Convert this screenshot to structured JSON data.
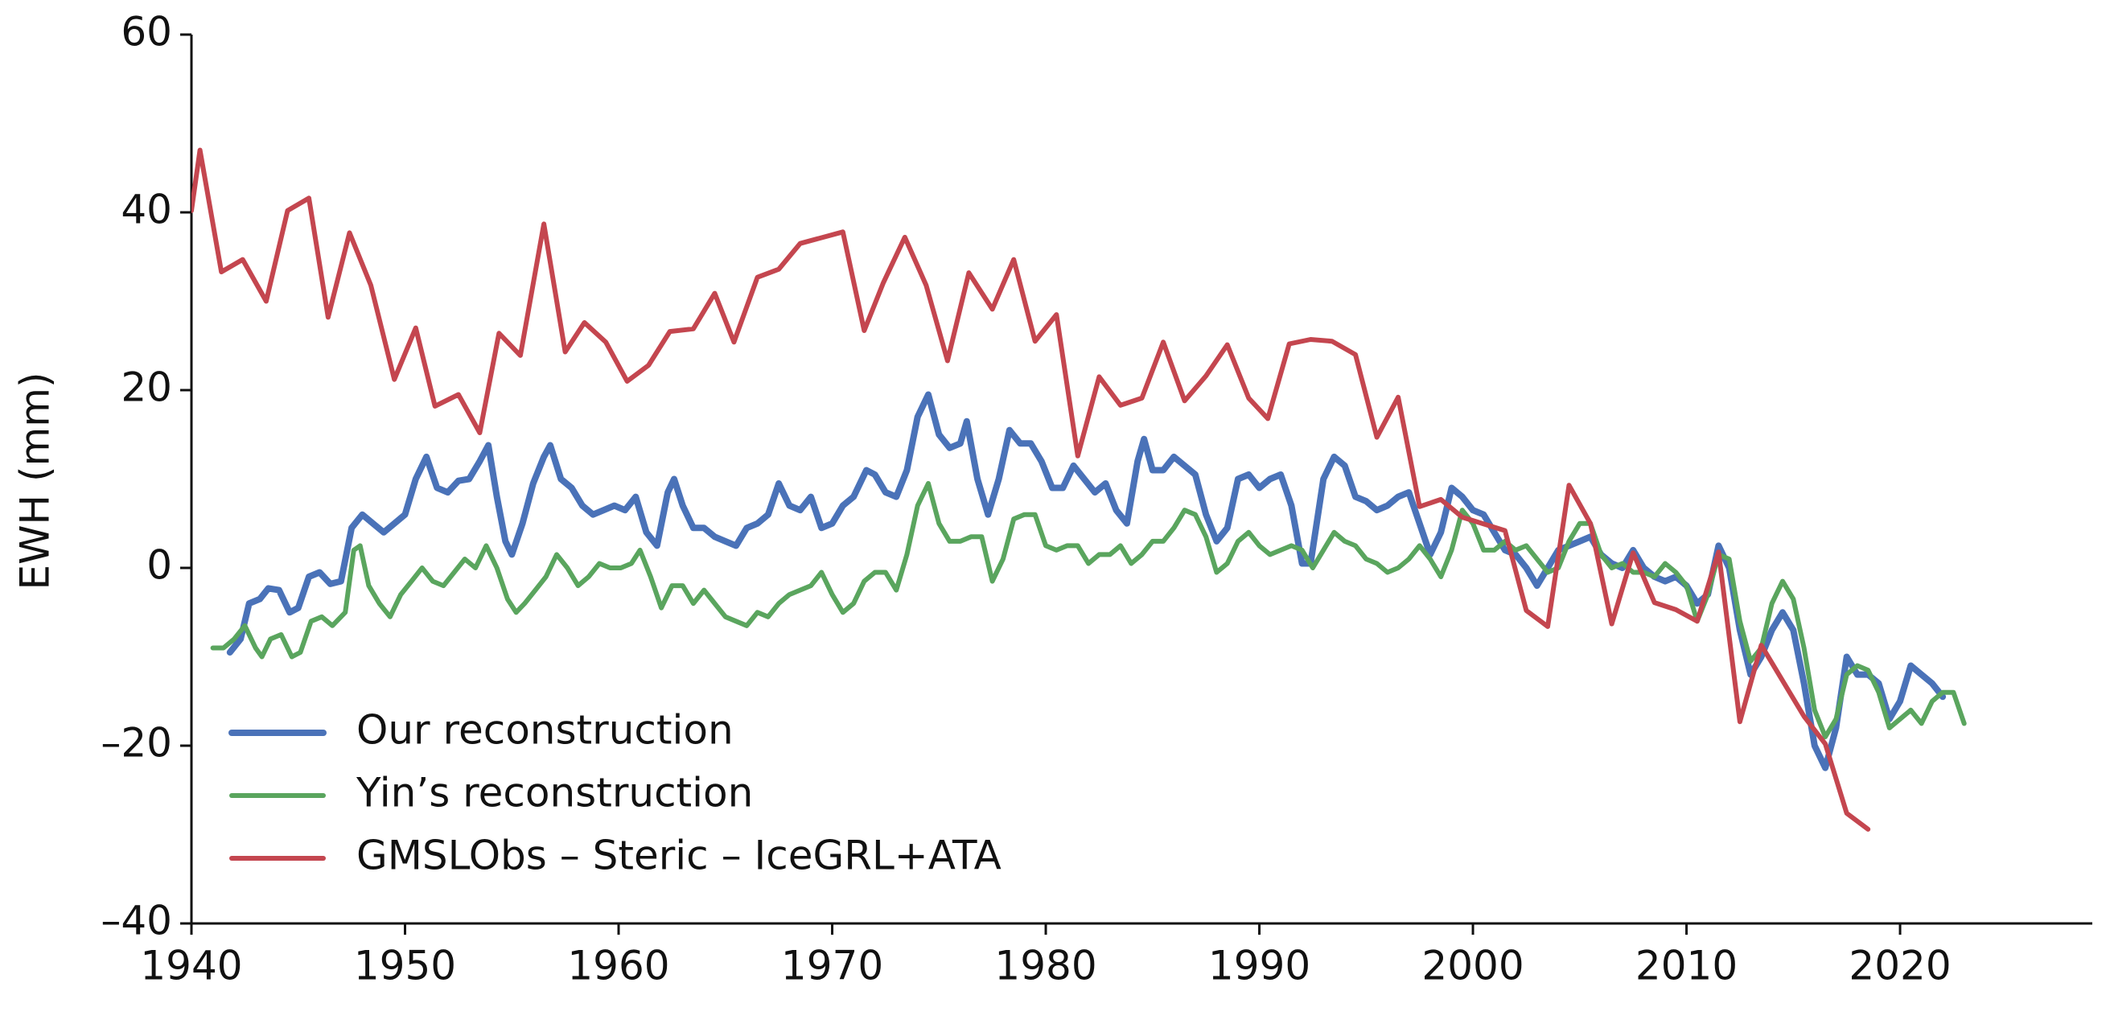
{
  "chart_data": {
    "type": "line",
    "y_label": "EWH (mm)",
    "xlim": [
      1940,
      2029
    ],
    "ylim": [
      -40,
      60
    ],
    "xticks": [
      1940,
      1950,
      1960,
      1970,
      1980,
      1990,
      2000,
      2010,
      2020
    ],
    "yticks": [
      {
        "value": -40,
        "label": "–40"
      },
      {
        "value": -20,
        "label": "–20"
      },
      0,
      20,
      40,
      60
    ],
    "grid": false,
    "legend": "lower left",
    "series": [
      {
        "name": "Our reconstruction",
        "color": "#4a72b8",
        "width": 8,
        "x": [
          1941.8,
          1942.3,
          1942.7,
          1943.2,
          1943.6,
          1944.1,
          1944.6,
          1945.0,
          1945.5,
          1946.0,
          1946.5,
          1947.0,
          1947.5,
          1948.0,
          1948.5,
          1949.0,
          1949.5,
          1950.0,
          1950.5,
          1951.0,
          1951.5,
          1952.0,
          1952.5,
          1953.0,
          1953.5,
          1953.9,
          1954.3,
          1954.7,
          1955.0,
          1955.5,
          1956.0,
          1956.5,
          1956.8,
          1957.3,
          1957.8,
          1958.3,
          1958.8,
          1959.3,
          1959.8,
          1960.3,
          1960.8,
          1961.3,
          1961.8,
          1962.3,
          1962.6,
          1963.0,
          1963.5,
          1964.0,
          1964.5,
          1965.0,
          1965.5,
          1966.0,
          1966.5,
          1967.0,
          1967.5,
          1968.0,
          1968.5,
          1969.0,
          1969.5,
          1970.0,
          1970.5,
          1971.0,
          1971.6,
          1972.0,
          1972.5,
          1973.0,
          1973.5,
          1974.0,
          1974.5,
          1975.0,
          1975.5,
          1976.0,
          1976.3,
          1976.8,
          1977.3,
          1977.8,
          1978.3,
          1978.8,
          1979.3,
          1979.8,
          1980.3,
          1980.8,
          1981.3,
          1981.8,
          1982.3,
          1982.8,
          1983.3,
          1983.8,
          1984.3,
          1984.6,
          1985.0,
          1985.5,
          1986.0,
          1986.5,
          1987.0,
          1987.5,
          1988.0,
          1988.5,
          1989.0,
          1989.5,
          1990.0,
          1990.5,
          1991.0,
          1991.5,
          1992.0,
          1992.4,
          1993.0,
          1993.5,
          1994.0,
          1994.5,
          1995.0,
          1995.5,
          1996.0,
          1996.5,
          1997.0,
          1997.5,
          1998.0,
          1998.5,
          1999.0,
          1999.5,
          2000.0,
          2000.5,
          2001.0,
          2001.5,
          2002.0,
          2002.5,
          2003.0,
          2003.5,
          2004.0,
          2004.5,
          2005.0,
          2005.5,
          2006.0,
          2006.5,
          2007.0,
          2007.5,
          2008.0,
          2008.5,
          2009.0,
          2009.5,
          2010.0,
          2010.5,
          2011.0,
          2011.5,
          2012.0,
          2012.5,
          2013.0,
          2013.5,
          2014.0,
          2014.5,
          2015.0,
          2015.5,
          2016.0,
          2016.5,
          2017.0,
          2017.5,
          2018.0,
          2018.5,
          2019.0,
          2019.5,
          2020.0,
          2020.5,
          2021.0,
          2021.5,
          2022.0
        ],
        "values": [
          -9.5,
          -8,
          -4,
          -3.5,
          -2.3,
          -2.5,
          -5,
          -4.5,
          -1,
          -0.5,
          -1.8,
          -1.5,
          4.5,
          6,
          5,
          4,
          5,
          6,
          10,
          12.5,
          9,
          8.5,
          9.8,
          10,
          12,
          13.8,
          8,
          3,
          1.5,
          5,
          9.5,
          12.5,
          13.8,
          10,
          9,
          7,
          6,
          6.5,
          7,
          6.5,
          8,
          4,
          2.5,
          8.5,
          10,
          7,
          4.5,
          4.5,
          3.5,
          3,
          2.5,
          4.5,
          5,
          6,
          9.5,
          7,
          6.5,
          8,
          4.5,
          5,
          7,
          8,
          11,
          10.5,
          8.5,
          8,
          11,
          17,
          19.5,
          15,
          13.5,
          14,
          16.5,
          10,
          6,
          10,
          15.5,
          14,
          14,
          12,
          9,
          9,
          11.5,
          10,
          8.5,
          9.5,
          6.5,
          5,
          12,
          14.5,
          11,
          11,
          12.5,
          11.5,
          10.5,
          6,
          3,
          4.5,
          10,
          10.5,
          9,
          10,
          10.5,
          7,
          0.5,
          0.5,
          10,
          12.5,
          11.5,
          8,
          7.5,
          6.5,
          7,
          8,
          8.5,
          5,
          1.5,
          4,
          9,
          8,
          6.5,
          6,
          4,
          2,
          1.5,
          0,
          -2,
          0,
          2,
          2.5,
          3,
          3.5,
          1.5,
          0.5,
          0,
          2,
          0,
          -1,
          -1.5,
          -1,
          -2,
          -4,
          -3,
          2.5,
          0,
          -7,
          -12,
          -10,
          -7,
          -5,
          -7,
          -13,
          -20,
          -22.5,
          -18,
          -10,
          -12,
          -12,
          -13,
          -17,
          -15,
          -11,
          -12,
          -13,
          -14.5
        ]
      },
      {
        "name": "Yin’s reconstruction",
        "color": "#5aa55e",
        "width": 6,
        "x": [
          1941.0,
          1941.5,
          1942.0,
          1942.5,
          1943.0,
          1943.3,
          1943.7,
          1944.2,
          1944.7,
          1945.1,
          1945.6,
          1946.1,
          1946.6,
          1947.2,
          1947.6,
          1947.9,
          1948.3,
          1948.8,
          1949.3,
          1949.8,
          1950.3,
          1950.8,
          1951.3,
          1951.8,
          1952.3,
          1952.8,
          1953.3,
          1953.8,
          1954.3,
          1954.8,
          1955.2,
          1955.6,
          1956.1,
          1956.6,
          1957.1,
          1957.6,
          1958.1,
          1958.6,
          1959.1,
          1959.6,
          1960.1,
          1960.6,
          1961.0,
          1961.5,
          1962.0,
          1962.5,
          1963.0,
          1963.5,
          1964.0,
          1964.5,
          1965.0,
          1965.5,
          1966.0,
          1966.5,
          1967.0,
          1967.5,
          1968.0,
          1968.5,
          1969.0,
          1969.5,
          1970.0,
          1970.5,
          1971.0,
          1971.5,
          1972.0,
          1972.5,
          1973.0,
          1973.5,
          1974.0,
          1974.5,
          1975.0,
          1975.5,
          1976.0,
          1976.5,
          1977.0,
          1977.5,
          1978.0,
          1978.5,
          1979.0,
          1979.5,
          1980.0,
          1980.5,
          1981.0,
          1981.5,
          1982.0,
          1982.5,
          1983.0,
          1983.5,
          1984.0,
          1984.5,
          1985.0,
          1985.5,
          1986.0,
          1986.5,
          1987.0,
          1987.5,
          1988.0,
          1988.5,
          1989.0,
          1989.5,
          1990.0,
          1990.5,
          1991.0,
          1991.5,
          1992.0,
          1992.5,
          1993.0,
          1993.5,
          1994.0,
          1994.5,
          1995.0,
          1995.5,
          1996.0,
          1996.5,
          1997.0,
          1997.5,
          1998.0,
          1998.5,
          1999.0,
          1999.5,
          2000.0,
          2000.5,
          2001.0,
          2001.5,
          2002.0,
          2002.5,
          2003.0,
          2003.5,
          2004.0,
          2004.5,
          2005.0,
          2005.5,
          2006.0,
          2006.5,
          2007.0,
          2007.5,
          2008.0,
          2008.5,
          2009.0,
          2009.5,
          2010.0,
          2010.5,
          2011.0,
          2011.5,
          2012.0,
          2012.5,
          2013.0,
          2013.5,
          2014.0,
          2014.5,
          2015.0,
          2015.5,
          2016.0,
          2016.5,
          2017.0,
          2017.5,
          2018.0,
          2018.5,
          2019.0,
          2019.5,
          2020.0,
          2020.5,
          2021.0,
          2021.5,
          2022.0,
          2022.5,
          2023.0
        ],
        "values": [
          -9,
          -9,
          -8,
          -6.5,
          -9,
          -10,
          -8,
          -7.5,
          -10,
          -9.5,
          -6,
          -5.5,
          -6.5,
          -5,
          2,
          2.5,
          -2,
          -4,
          -5.5,
          -3,
          -1.5,
          0,
          -1.5,
          -2,
          -0.5,
          1,
          0,
          2.5,
          0,
          -3.5,
          -5,
          -4,
          -2.5,
          -1,
          1.5,
          0,
          -2,
          -1,
          0.5,
          0,
          0,
          0.5,
          2,
          -1,
          -4.5,
          -2,
          -2,
          -4,
          -2.5,
          -4,
          -5.5,
          -6,
          -6.5,
          -5,
          -5.5,
          -4,
          -3,
          -2.5,
          -2,
          -0.5,
          -3,
          -5,
          -4,
          -1.5,
          -0.5,
          -0.5,
          -2.5,
          1.5,
          7,
          9.5,
          5,
          3,
          3,
          3.5,
          3.5,
          -1.5,
          1,
          5.5,
          6,
          6,
          2.5,
          2,
          2.5,
          2.5,
          0.5,
          1.5,
          1.5,
          2.5,
          0.5,
          1.5,
          3,
          3,
          4.5,
          6.5,
          6,
          3.5,
          -0.5,
          0.5,
          3,
          4,
          2.5,
          1.5,
          2,
          2.5,
          2,
          0,
          2,
          4,
          3,
          2.5,
          1,
          0.5,
          -0.5,
          0,
          1,
          2.5,
          1,
          -1,
          2,
          6.5,
          5,
          2,
          2,
          3,
          2,
          2.5,
          1,
          -0.5,
          0,
          3,
          5,
          5,
          1.5,
          0,
          0.5,
          -0.5,
          -0.5,
          -1,
          0.5,
          -0.5,
          -2,
          -6,
          -3,
          1.5,
          1,
          -6,
          -10.5,
          -9,
          -4,
          -1.5,
          -3.5,
          -9,
          -16,
          -19,
          -17,
          -12,
          -11,
          -11.5,
          -14,
          -18,
          -17,
          -16,
          -17.5,
          -15,
          -14,
          -14,
          -17.5
        ]
      },
      {
        "name": "GMSLObs – Steric – IceGRL+ATA",
        "color": "#c4464f",
        "width": 6,
        "x": [
          1940.0,
          1940.4,
          1941.4,
          1942.4,
          1943.5,
          1944.5,
          1945.5,
          1946.4,
          1947.4,
          1948.4,
          1949.5,
          1950.5,
          1951.4,
          1952.5,
          1953.5,
          1954.4,
          1955.4,
          1956.5,
          1957.5,
          1958.4,
          1959.4,
          1960.4,
          1961.4,
          1962.4,
          1963.5,
          1964.5,
          1965.4,
          1966.5,
          1967.5,
          1968.5,
          1970.5,
          1971.5,
          1972.4,
          1973.4,
          1974.4,
          1975.4,
          1976.4,
          1977.5,
          1978.5,
          1979.5,
          1980.5,
          1981.5,
          1982.5,
          1983.5,
          1984.5,
          1985.5,
          1986.5,
          1987.5,
          1988.5,
          1989.5,
          1990.4,
          1991.4,
          1992.4,
          1993.4,
          1994.5,
          1995.5,
          1996.5,
          1997.5,
          1998.5,
          1999.5,
          2001.5,
          2002.5,
          2003.5,
          2004.5,
          2005.5,
          2006.5,
          2007.5,
          2008.5,
          2009.5,
          2010.5,
          2011.5,
          2012.5,
          2013.5,
          2015.5,
          2016.5,
          2017.5,
          2018.5
        ],
        "values": [
          40.2,
          47,
          33.3,
          34.7,
          30,
          40.2,
          41.6,
          28.2,
          37.7,
          31.8,
          21.2,
          27,
          18.2,
          19.5,
          15.2,
          26.4,
          23.9,
          38.7,
          24.3,
          27.6,
          25.4,
          21,
          22.8,
          26.6,
          26.9,
          30.9,
          25.4,
          32.7,
          33.6,
          36.5,
          37.8,
          26.7,
          32.1,
          37.2,
          31.8,
          23.3,
          33.2,
          29.1,
          34.7,
          25.5,
          28.5,
          12.6,
          21.5,
          18.3,
          19.1,
          25.4,
          18.8,
          21.6,
          25.1,
          19.1,
          16.8,
          25.2,
          25.7,
          25.5,
          24,
          14.7,
          19.2,
          6.9,
          7.7,
          5.7,
          4.2,
          -4.8,
          -6.6,
          9.3,
          5,
          -6.3,
          1.7,
          -3.9,
          -4.7,
          -6,
          1.8,
          -17.3,
          -8.7,
          -16.7,
          -19.8,
          -27.6,
          -29.4
        ]
      }
    ]
  }
}
